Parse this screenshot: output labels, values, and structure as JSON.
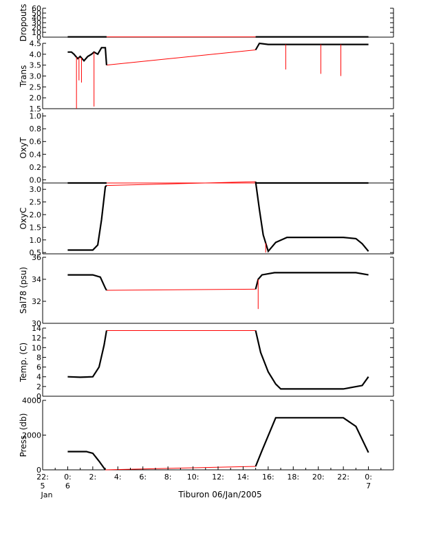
{
  "chart_data": {
    "type": "line",
    "title": "",
    "xlabel": "Tiburon 06/Jan/2005",
    "x_ticks": [
      {
        "h": -2,
        "top": "22:",
        "mid": "5",
        "bot": "Jan"
      },
      {
        "h": 0,
        "top": "0:",
        "mid": "6",
        "bot": ""
      },
      {
        "h": 2,
        "top": "2:",
        "mid": "",
        "bot": ""
      },
      {
        "h": 4,
        "top": "4:",
        "mid": "",
        "bot": ""
      },
      {
        "h": 6,
        "top": "6:",
        "mid": "",
        "bot": ""
      },
      {
        "h": 8,
        "top": "8:",
        "mid": "",
        "bot": ""
      },
      {
        "h": 10,
        "top": "10:",
        "mid": "",
        "bot": ""
      },
      {
        "h": 12,
        "top": "12:",
        "mid": "",
        "bot": ""
      },
      {
        "h": 14,
        "top": "14:",
        "mid": "",
        "bot": ""
      },
      {
        "h": 16,
        "top": "16:",
        "mid": "",
        "bot": ""
      },
      {
        "h": 18,
        "top": "18:",
        "mid": "",
        "bot": ""
      },
      {
        "h": 20,
        "top": "20:",
        "mid": "",
        "bot": ""
      },
      {
        "h": 22,
        "top": "22:",
        "mid": "",
        "bot": ""
      },
      {
        "h": 24,
        "top": "0:",
        "mid": "7",
        "bot": ""
      }
    ],
    "xlim_hours": [
      -2,
      26
    ],
    "gap_hours": [
      3.1,
      15.0
    ],
    "colors": {
      "data": "#000000",
      "gap": "#ff0000"
    },
    "panels": [
      {
        "name": "dropouts",
        "ylabel": "Dropouts",
        "ylim": [
          0,
          60
        ],
        "ticks": [
          0,
          10,
          20,
          30,
          40,
          50,
          60
        ],
        "x": [
          0,
          3.1,
          15.0,
          24.0
        ],
        "y": [
          0.5,
          0.5,
          0.5,
          0.5
        ]
      },
      {
        "name": "trans",
        "ylabel": "Trans",
        "ylim": [
          1.5,
          4.5
        ],
        "ticks": [
          1.5,
          2.0,
          2.5,
          3.0,
          3.5,
          4.0,
          4.5
        ],
        "x": [
          0,
          0.3,
          0.5,
          0.8,
          1.0,
          1.3,
          1.6,
          1.9,
          2.1,
          2.4,
          2.7,
          3.0,
          3.1,
          15.0,
          15.3,
          16,
          18,
          20,
          22,
          23,
          24
        ],
        "y": [
          4.1,
          4.1,
          4.0,
          3.8,
          3.9,
          3.7,
          3.9,
          4.0,
          4.1,
          4.0,
          4.3,
          4.3,
          3.5,
          4.2,
          4.5,
          4.45,
          4.45,
          4.45,
          4.45,
          4.45,
          4.45
        ],
        "spikes": [
          {
            "x": 0.7,
            "y": 1.5
          },
          {
            "x": 0.9,
            "y": 2.8
          },
          {
            "x": 1.1,
            "y": 2.7
          },
          {
            "x": 2.1,
            "y": 1.6
          },
          {
            "x": 17.4,
            "y": 3.3
          },
          {
            "x": 20.2,
            "y": 3.1
          },
          {
            "x": 21.8,
            "y": 3.0
          }
        ]
      },
      {
        "name": "oxyt",
        "ylabel": "OxyT",
        "ylim": [
          -0.05,
          1.05
        ],
        "ticks": [
          0.0,
          0.2,
          0.4,
          0.6,
          0.8,
          1.0
        ],
        "x": [
          0,
          3.1,
          15.0,
          24.0
        ],
        "y": [
          -0.05,
          -0.05,
          -0.05,
          -0.05
        ]
      },
      {
        "name": "oxyc",
        "ylabel": "OxyC",
        "ylim": [
          0.45,
          3.25
        ],
        "ticks": [
          0.5,
          1.0,
          1.5,
          2.0,
          2.5,
          3.0
        ],
        "x": [
          0,
          1.0,
          2.0,
          2.4,
          2.7,
          3.0,
          3.1,
          15.0,
          15.3,
          15.6,
          16.0,
          16.6,
          17.5,
          20,
          22,
          23,
          23.5,
          24
        ],
        "y": [
          0.6,
          0.6,
          0.6,
          0.8,
          1.8,
          3.1,
          3.15,
          3.3,
          2.2,
          1.2,
          0.55,
          0.9,
          1.1,
          1.1,
          1.1,
          1.05,
          0.85,
          0.55
        ],
        "spikes": [
          {
            "x": 15.8,
            "y": 0.5
          }
        ]
      },
      {
        "name": "sal",
        "ylabel": "Sal78 (psu)",
        "ylim": [
          30,
          36
        ],
        "ticks": [
          30,
          32,
          34,
          36
        ],
        "x": [
          0,
          2.0,
          2.6,
          3.0,
          3.1,
          15.0,
          15.2,
          15.5,
          16.5,
          18,
          20,
          22,
          23,
          24
        ],
        "y": [
          34.4,
          34.4,
          34.2,
          33.2,
          33.0,
          33.1,
          34.0,
          34.4,
          34.6,
          34.6,
          34.6,
          34.6,
          34.6,
          34.4
        ],
        "spikes": [
          {
            "x": 15.2,
            "y": 31.3
          }
        ]
      },
      {
        "name": "temp",
        "ylabel": "Temp. (C)",
        "ylim": [
          0,
          14
        ],
        "ticks": [
          0,
          2,
          4,
          6,
          8,
          10,
          12,
          14
        ],
        "x": [
          0,
          1.0,
          2.0,
          2.5,
          2.9,
          3.1,
          15.0,
          15.4,
          16.0,
          16.6,
          17.0,
          18,
          20,
          22,
          23.5,
          24
        ],
        "y": [
          4.0,
          3.9,
          4.0,
          6.0,
          10.5,
          13.5,
          13.5,
          9.0,
          5.0,
          2.5,
          1.5,
          1.5,
          1.5,
          1.5,
          2.2,
          4.0
        ]
      },
      {
        "name": "press",
        "ylabel": "Press. (db)",
        "ylim": [
          0,
          4000
        ],
        "ticks": [
          0,
          2000,
          4000
        ],
        "x": [
          0,
          1.5,
          2.0,
          2.5,
          3.0,
          3.3,
          14.5,
          15.0,
          15.5,
          16.6,
          17.0,
          20,
          22,
          23,
          24
        ],
        "y": [
          1050,
          1050,
          950,
          500,
          0,
          0,
          0,
          200,
          1100,
          3000,
          3000,
          3000,
          3000,
          2500,
          1000
        ]
      }
    ]
  }
}
